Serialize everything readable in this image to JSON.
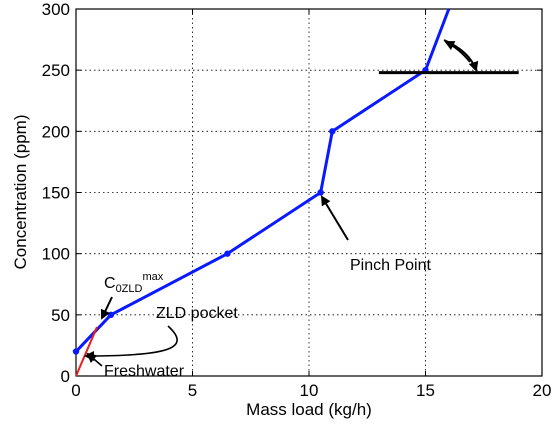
{
  "chart_data": {
    "type": "line",
    "xlabel": "Mass load (kg/h)",
    "ylabel": "Concentration (ppm)",
    "xlim": [
      0,
      20
    ],
    "ylim": [
      0,
      300
    ],
    "xticks": [
      "0",
      "5",
      "10",
      "15",
      "20"
    ],
    "yticks": [
      "0",
      "50",
      "100",
      "150",
      "200",
      "250",
      "300"
    ],
    "grid": true,
    "series": [
      {
        "color": "#0a1aff",
        "x": [
          0,
          1.5,
          6.5,
          10.5,
          11,
          15,
          16
        ],
        "y": [
          20,
          50,
          100,
          150,
          200,
          250,
          300
        ],
        "markers": [
          [
            0,
            20
          ],
          [
            1.5,
            50
          ],
          [
            6.5,
            100
          ],
          [
            10.5,
            150
          ],
          [
            11,
            200
          ],
          [
            15,
            250
          ]
        ]
      },
      {
        "color": "#e8201c",
        "x": [
          0,
          0.9
        ],
        "y": [
          0,
          40
        ]
      }
    ],
    "annotations": {
      "pinch_point": "Pinch Point",
      "zld_pocket": "ZLD pocket",
      "freshwater": "Freshwater",
      "c_main": "C",
      "c_sub": "0ZLD",
      "c_sup": "max"
    },
    "horizontal_line": {
      "y": 248,
      "x_from": 13,
      "x_to": 19
    }
  }
}
